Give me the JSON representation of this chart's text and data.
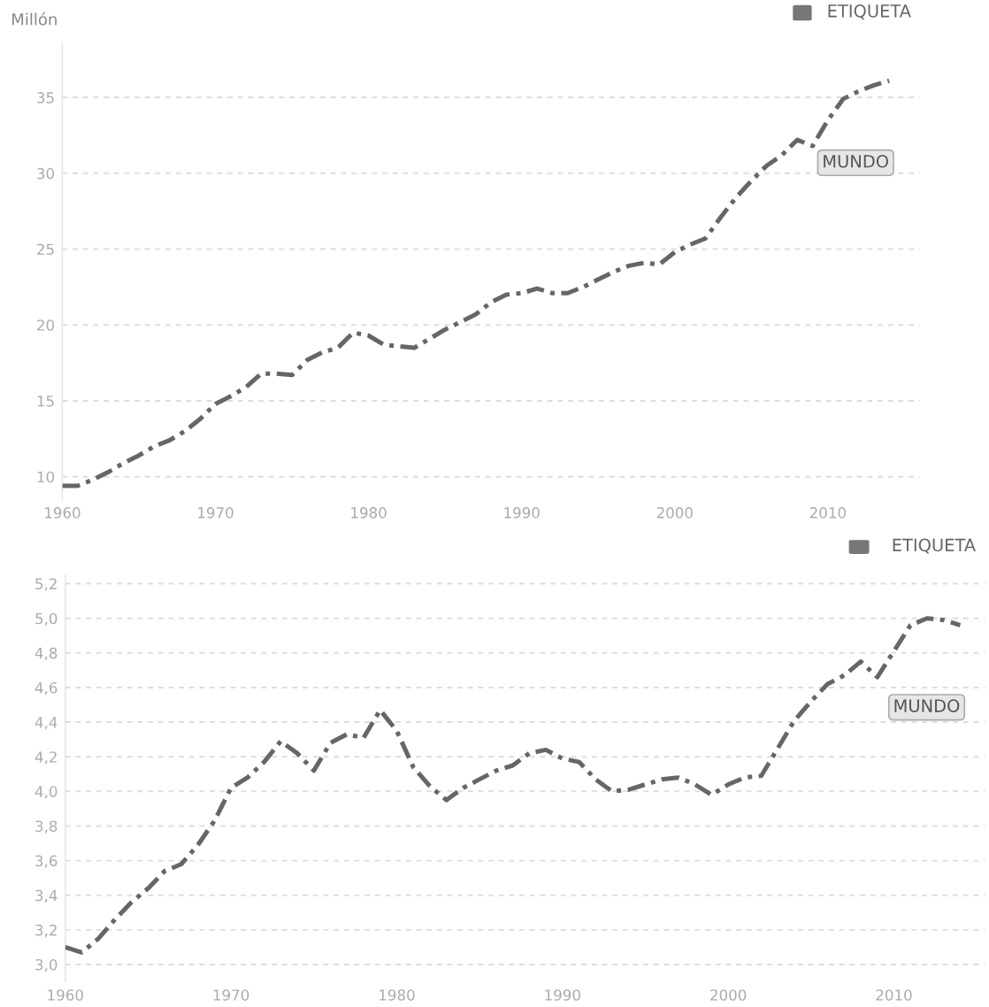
{
  "chart_data": [
    {
      "type": "line",
      "ylabel": "Millón",
      "annotations": [
        "ETIQUETA"
      ],
      "x": [
        1960,
        1961,
        1962,
        1963,
        1964,
        1965,
        1966,
        1967,
        1968,
        1969,
        1970,
        1971,
        1972,
        1973,
        1974,
        1975,
        1976,
        1977,
        1978,
        1979,
        1980,
        1981,
        1982,
        1983,
        1984,
        1985,
        1986,
        1987,
        1988,
        1989,
        1990,
        1991,
        1992,
        1993,
        1994,
        1995,
        1996,
        1997,
        1998,
        1999,
        2000,
        2001,
        2002,
        2003,
        2004,
        2005,
        2006,
        2007,
        2008,
        2009,
        2010,
        2011,
        2012,
        2013,
        2014
      ],
      "series": [
        {
          "name": "MUNDO",
          "color": "#666666",
          "values": [
            9.4,
            9.4,
            9.8,
            10.3,
            10.9,
            11.4,
            12.0,
            12.4,
            13.0,
            13.8,
            14.8,
            15.3,
            15.9,
            16.8,
            16.8,
            16.7,
            17.7,
            18.2,
            18.5,
            19.5,
            19.3,
            18.7,
            18.6,
            18.5,
            19.1,
            19.7,
            20.2,
            20.7,
            21.5,
            22.0,
            22.1,
            22.4,
            22.1,
            22.1,
            22.5,
            23.0,
            23.5,
            23.9,
            24.1,
            24.0,
            24.8,
            25.3,
            25.7,
            27.1,
            28.4,
            29.5,
            30.5,
            31.2,
            32.2,
            31.8,
            33.5,
            34.9,
            35.4,
            35.8,
            36.1
          ]
        }
      ],
      "xlim": [
        1960,
        2016
      ],
      "xticks": [
        1960,
        1970,
        1980,
        1990,
        2000,
        2010
      ],
      "ylim": [
        8.5,
        38.5
      ],
      "yticks": [
        10,
        15,
        20,
        25,
        30,
        35
      ],
      "grid": "y",
      "legend": false,
      "marker": "none",
      "line_style": "dashed"
    },
    {
      "type": "line",
      "annotations": [
        "ETIQUETA"
      ],
      "x": [
        1960,
        1961,
        1962,
        1963,
        1964,
        1965,
        1966,
        1967,
        1968,
        1969,
        1970,
        1971,
        1972,
        1973,
        1974,
        1975,
        1976,
        1977,
        1978,
        1979,
        1980,
        1981,
        1982,
        1983,
        1984,
        1985,
        1986,
        1987,
        1988,
        1989,
        1990,
        1991,
        1992,
        1993,
        1994,
        1995,
        1996,
        1997,
        1998,
        1999,
        2000,
        2001,
        2002,
        2003,
        2004,
        2005,
        2006,
        2007,
        2008,
        2009,
        2010,
        2011,
        2012,
        2013,
        2014
      ],
      "series": [
        {
          "name": "MUNDO",
          "color": "#666666",
          "values": [
            3.1,
            3.07,
            3.15,
            3.26,
            3.36,
            3.44,
            3.54,
            3.58,
            3.69,
            3.83,
            4.02,
            4.08,
            4.17,
            4.29,
            4.22,
            4.12,
            4.28,
            4.33,
            4.31,
            4.47,
            4.35,
            4.14,
            4.03,
            3.95,
            4.02,
            4.07,
            4.12,
            4.15,
            4.22,
            4.24,
            4.19,
            4.17,
            4.07,
            4.0,
            4.01,
            4.04,
            4.07,
            4.08,
            4.04,
            3.98,
            4.04,
            4.08,
            4.09,
            4.25,
            4.41,
            4.52,
            4.62,
            4.67,
            4.75,
            4.66,
            4.81,
            4.96,
            5.0,
            4.99,
            4.96
          ]
        }
      ],
      "xlim": [
        1960,
        2015.5
      ],
      "xticks": [
        1960,
        1970,
        1980,
        1990,
        2000,
        2010
      ],
      "ylim": [
        2.9,
        5.25
      ],
      "yticks": [
        {
          "value": 3.0,
          "label": "3,0"
        },
        {
          "value": 3.2,
          "label": "3,2"
        },
        {
          "value": 3.4,
          "label": "3,4"
        },
        {
          "value": 3.6,
          "label": "3,6"
        },
        {
          "value": 3.8,
          "label": "3,8"
        },
        {
          "value": 4.0,
          "label": "4,0"
        },
        {
          "value": 4.2,
          "label": "4,2"
        },
        {
          "value": 4.4,
          "label": "4,4"
        },
        {
          "value": 4.6,
          "label": "4,6"
        },
        {
          "value": 4.8,
          "label": "4,8"
        },
        {
          "value": 5.0,
          "label": "5,0"
        },
        {
          "value": 5.2,
          "label": "5,2"
        }
      ],
      "grid": "y",
      "legend": false,
      "marker": "none",
      "line_style": "dashed"
    }
  ]
}
